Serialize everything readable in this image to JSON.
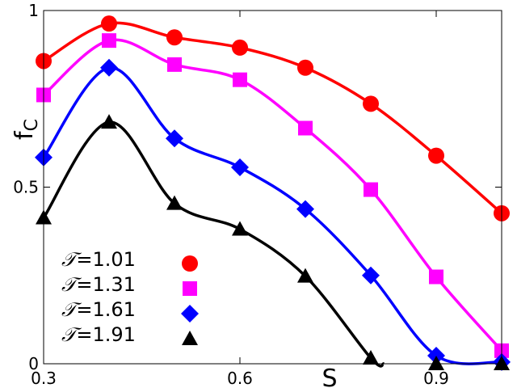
{
  "chart_data": {
    "type": "line",
    "title": "",
    "xlabel": "S",
    "ylabel": "f",
    "ylabel_sub": "C",
    "xlim": [
      0.3,
      1.0
    ],
    "ylim": [
      0,
      1
    ],
    "xticks": [
      {
        "value": 0.3,
        "label": "0.3"
      },
      {
        "value": 0.6,
        "label": "0.6"
      },
      {
        "value": 0.9,
        "label": "0.9"
      }
    ],
    "yticks": [
      {
        "value": 0,
        "label": "0"
      },
      {
        "value": 0.5,
        "label": "0.5"
      },
      {
        "value": 1,
        "label": "1"
      }
    ],
    "x": [
      0.3,
      0.4,
      0.5,
      0.6,
      0.7,
      0.8,
      0.9,
      1.0
    ],
    "grid": false,
    "legend_position": "bottom-left",
    "series": [
      {
        "name": "T=1.01",
        "legend_symbol": "𝒯",
        "legend_value": "=1.01",
        "color": "#ff0000",
        "marker": "circle",
        "x": [
          0.3,
          0.4,
          0.5,
          0.6,
          0.7,
          0.8,
          0.9,
          1.0
        ],
        "values": [
          0.857,
          0.963,
          0.924,
          0.895,
          0.838,
          0.736,
          0.589,
          0.426
        ]
      },
      {
        "name": "T=1.31",
        "legend_symbol": "𝒯",
        "legend_value": "=1.31",
        "color": "#ff00ff",
        "marker": "square",
        "x": [
          0.3,
          0.4,
          0.5,
          0.6,
          0.7,
          0.8,
          0.9,
          1.0
        ],
        "values": [
          0.761,
          0.915,
          0.847,
          0.804,
          0.667,
          0.493,
          0.246,
          0.037
        ]
      },
      {
        "name": "T=1.61",
        "legend_symbol": "𝒯",
        "legend_value": "=1.61",
        "color": "#0000ff",
        "marker": "diamond",
        "x": [
          0.3,
          0.4,
          0.5,
          0.6,
          0.7,
          0.8,
          0.9,
          1.0
        ],
        "values": [
          0.584,
          0.838,
          0.638,
          0.556,
          0.438,
          0.25,
          0.023,
          0.005
        ]
      },
      {
        "name": "T=1.91",
        "legend_symbol": "𝒯",
        "legend_value": "=1.91",
        "color": "#000000",
        "marker": "triangle",
        "x": [
          0.3,
          0.4,
          0.5,
          0.6,
          0.7,
          0.8,
          0.9,
          1.0
        ],
        "values": [
          0.413,
          0.684,
          0.454,
          0.381,
          0.248,
          0.016,
          0.0,
          0.0
        ]
      }
    ]
  }
}
